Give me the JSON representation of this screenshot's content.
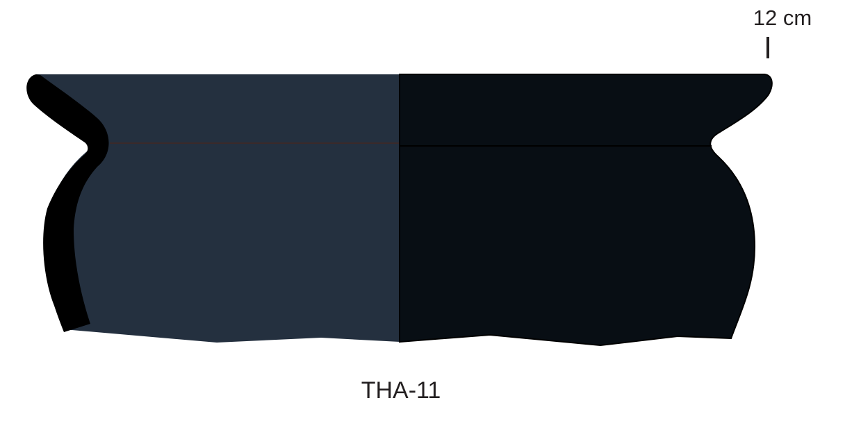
{
  "drawing": {
    "scale_label": "12 cm",
    "catalog_id": "THA-11"
  },
  "colors": {
    "exterior_fill": "#24303f",
    "interior_fill": "#080e14",
    "wall_section": "#000000",
    "outline": "#000000",
    "text": "#231f20",
    "background": "#ffffff"
  }
}
